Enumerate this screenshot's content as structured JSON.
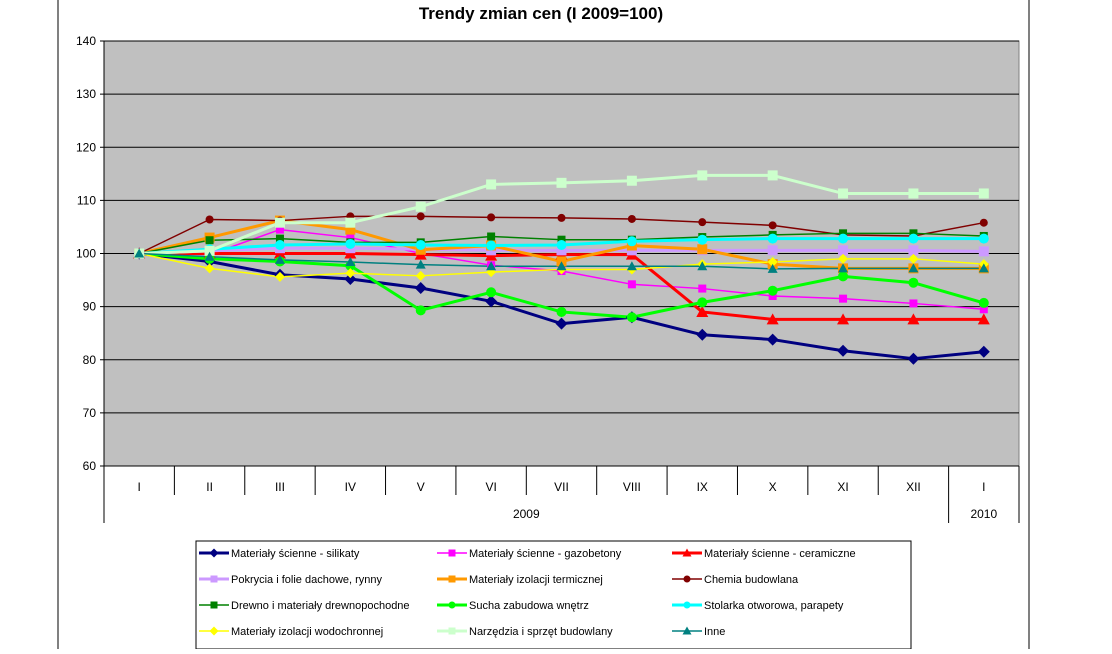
{
  "chart_data": {
    "type": "line",
    "title": "Trendy zmian cen (I 2009=100)",
    "categories": [
      "I",
      "II",
      "III",
      "IV",
      "V",
      "VI",
      "VII",
      "VIII",
      "IX",
      "X",
      "XI",
      "XII",
      "I"
    ],
    "year_groups": [
      {
        "label": "2009",
        "start": 0,
        "end": 11
      },
      {
        "label": "2010",
        "start": 12,
        "end": 12
      }
    ],
    "ylim": [
      60,
      140
    ],
    "yticks": [
      60,
      70,
      80,
      90,
      100,
      110,
      120,
      130,
      140
    ],
    "grid": true,
    "legend_position": "bottom",
    "plot_background": "#c0c0c0",
    "series": [
      {
        "name": "Materiały ścienne - silikaty",
        "color": "#000080",
        "marker": "diamond",
        "width": 3,
        "values": [
          100,
          98.5,
          96,
          95.2,
          93.5,
          91,
          86.8,
          88,
          84.7,
          83.8,
          81.7,
          80.2,
          81.5
        ]
      },
      {
        "name": "Materiały ścienne - gazobetony",
        "color": "#ff00ff",
        "marker": "square",
        "width": 1.5,
        "values": [
          100,
          99.8,
          104.5,
          103,
          100,
          97.8,
          96.7,
          94.2,
          93.4,
          92,
          91.5,
          90.6,
          89.5
        ]
      },
      {
        "name": "Materiały ścienne - ceramiczne",
        "color": "#ff0000",
        "marker": "triangle",
        "width": 3,
        "values": [
          100,
          100,
          100,
          100,
          99.8,
          99.6,
          99.8,
          99.8,
          89,
          87.6,
          87.6,
          87.6,
          87.6
        ]
      },
      {
        "name": "Pokrycia i folie dachowe, rynny",
        "color": "#cc99ff",
        "marker": "square",
        "width": 3,
        "values": [
          100,
          100.5,
          101,
          101,
          100.8,
          100.6,
          100.6,
          100.6,
          100.6,
          100.6,
          100.6,
          100.6,
          100.4
        ]
      },
      {
        "name": "Materiały izolacji termicznej",
        "color": "#ff9900",
        "marker": "square",
        "width": 3,
        "values": [
          100,
          103,
          106.2,
          104.5,
          100.7,
          101.5,
          98.5,
          101.5,
          100.8,
          98,
          97.2,
          97.2,
          97.2
        ]
      },
      {
        "name": "Chemia budowlana",
        "color": "#800000",
        "marker": "circle",
        "width": 1.5,
        "values": [
          100,
          106.4,
          106.2,
          107,
          107,
          106.8,
          106.7,
          106.5,
          105.9,
          105.3,
          103.5,
          103.3,
          105.8
        ]
      },
      {
        "name": "Drewno i materiały drewnopochodne",
        "color": "#008000",
        "marker": "square",
        "width": 1.5,
        "values": [
          100,
          102.5,
          102.8,
          102.1,
          102.1,
          103.2,
          102.6,
          102.6,
          103.1,
          103.5,
          103.8,
          103.8,
          103.3
        ]
      },
      {
        "name": "Sucha zabudowa wnętrz",
        "color": "#00ff00",
        "marker": "circle",
        "width": 3,
        "values": [
          100,
          99,
          98.5,
          97.7,
          89.3,
          92.7,
          89,
          88,
          90.8,
          93,
          95.7,
          94.5,
          90.7
        ]
      },
      {
        "name": "Stolarka otworowa, parapety",
        "color": "#00ffff",
        "marker": "circle",
        "width": 3,
        "values": [
          100,
          100.8,
          101.6,
          101.8,
          101.6,
          101.5,
          101.6,
          102.3,
          102.6,
          102.8,
          102.8,
          102.8,
          102.8
        ]
      },
      {
        "name": "Materiały izolacji wodochronnej",
        "color": "#ffff00",
        "marker": "diamond",
        "width": 1.5,
        "values": [
          100,
          97.2,
          95.6,
          96.3,
          95.8,
          96.5,
          97,
          97,
          98,
          98.4,
          99,
          99,
          98
        ]
      },
      {
        "name": "Narzędzia i sprzęt budowlany",
        "color": "#ccffcc",
        "marker": "square",
        "width": 3,
        "values": [
          100,
          100.5,
          105.8,
          105.8,
          108.8,
          113,
          113.3,
          113.7,
          114.7,
          114.7,
          111.3,
          111.3,
          111.3
        ]
      },
      {
        "name": "Inne",
        "color": "#008080",
        "marker": "triangle",
        "width": 1.5,
        "values": [
          100,
          99.4,
          98.8,
          98.4,
          97.9,
          97.6,
          97.6,
          97.6,
          97.6,
          97.1,
          97.2,
          97.2,
          97.2
        ]
      }
    ]
  }
}
